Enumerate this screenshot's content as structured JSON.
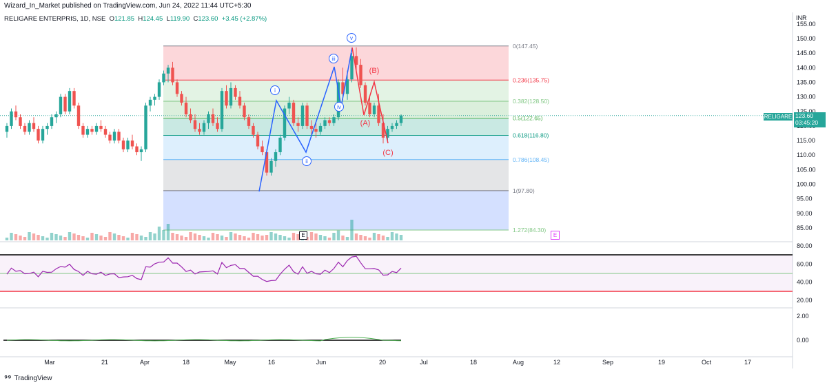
{
  "header": {
    "published": "Wizard_In_Market published on TradingView.com, Jun 24, 2022 11:44 UTC+5:30"
  },
  "symbol": {
    "name": "RELIGARE ENTERPRIS, 1D, NSE",
    "o_label": "O",
    "o": "121.85",
    "h_label": "H",
    "h": "124.45",
    "l_label": "L",
    "l": "119.90",
    "c_label": "C",
    "c": "123.60",
    "change": "+3.45 (+2.87%)"
  },
  "price_axis": {
    "currency": "INR",
    "ticks": [
      "155.00",
      "150.00",
      "145.00",
      "140.00",
      "135.00",
      "130.00",
      "125.00",
      "120.00",
      "115.00",
      "110.00",
      "105.00",
      "100.00",
      "95.00",
      "90.00",
      "85.00"
    ],
    "tag_name": "RELIGARE",
    "last_price": "123.60",
    "countdown": "03:45:20"
  },
  "rsi_axis": {
    "ticks": [
      "80.00",
      "60.00",
      "40.00",
      "20.00"
    ]
  },
  "osc_axis": {
    "ticks": [
      "2.00",
      "0.00"
    ]
  },
  "time_axis": [
    "Mar",
    "21",
    "Apr",
    "18",
    "May",
    "16",
    "Jun",
    "20",
    "Jul",
    "18",
    "Aug",
    "12",
    "Sep",
    "19",
    "Oct",
    "17"
  ],
  "fib_levels": [
    {
      "label": "0(147.45)",
      "price": 147.45,
      "color": "#787b86"
    },
    {
      "label": "0.236(135.75)",
      "price": 135.75,
      "color": "#f23645"
    },
    {
      "label": "0.382(128.50)",
      "price": 128.5,
      "color": "#81c784"
    },
    {
      "label": "0.5(122.65)",
      "price": 122.65,
      "color": "#4caf50"
    },
    {
      "label": "0.618(116.80)",
      "price": 116.8,
      "color": "#089981"
    },
    {
      "label": "0.786(108.45)",
      "price": 108.45,
      "color": "#64b5f6"
    },
    {
      "label": "1(97.80)",
      "price": 97.8,
      "color": "#787b86"
    },
    {
      "label": "1.272(84.30)",
      "price": 84.3,
      "color": "#81c784"
    }
  ],
  "waves": {
    "impulse": [
      "i",
      "ii",
      "iii",
      "iv",
      "v"
    ],
    "corrective": [
      "(A)",
      "(B)",
      "(C)"
    ]
  },
  "badges": {
    "earnings_marker": "E",
    "earnings_future": "E"
  },
  "footer": {
    "brand": "TradingView"
  },
  "colors": {
    "up": "#26a69a",
    "down": "#ef5350",
    "wave_blue": "#2962ff",
    "wave_red": "#f23645",
    "rsi": "#9c27b0"
  },
  "chart_data": {
    "type": "candlestick",
    "title": "RELIGARE ENTERPRIS, 1D, NSE",
    "ylim": [
      83,
      157
    ],
    "last_close": 123.6,
    "candles_ohlc": [
      [
        118,
        121,
        116,
        120
      ],
      [
        120,
        126,
        119,
        125
      ],
      [
        125,
        127,
        122,
        123
      ],
      [
        123,
        124,
        119,
        120
      ],
      [
        120,
        121,
        117,
        118
      ],
      [
        118,
        122,
        117,
        121
      ],
      [
        121,
        123,
        118,
        119
      ],
      [
        119,
        120,
        114,
        115
      ],
      [
        115,
        120,
        114,
        119
      ],
      [
        119,
        121,
        117,
        120
      ],
      [
        120,
        124,
        119,
        123
      ],
      [
        123,
        125,
        121,
        124
      ],
      [
        124,
        131,
        123,
        130
      ],
      [
        130,
        131,
        124,
        125
      ],
      [
        125,
        133,
        124,
        132
      ],
      [
        132,
        133,
        126,
        127
      ],
      [
        127,
        128,
        119,
        120
      ],
      [
        120,
        121,
        116,
        117
      ],
      [
        117,
        120,
        116,
        119
      ],
      [
        119,
        120,
        117,
        118
      ],
      [
        118,
        121,
        117,
        120
      ],
      [
        120,
        122,
        118,
        119
      ],
      [
        119,
        120,
        116,
        117
      ],
      [
        117,
        118,
        114,
        115
      ],
      [
        115,
        119,
        114,
        118
      ],
      [
        118,
        119,
        114,
        115
      ],
      [
        115,
        116,
        111,
        112
      ],
      [
        112,
        116,
        111,
        115
      ],
      [
        115,
        117,
        112,
        113
      ],
      [
        113,
        114,
        110,
        111
      ],
      [
        111,
        113,
        108,
        112
      ],
      [
        112,
        128,
        111,
        127
      ],
      [
        127,
        130,
        125,
        129
      ],
      [
        129,
        131,
        127,
        130
      ],
      [
        130,
        136,
        129,
        135
      ],
      [
        135,
        139,
        134,
        138
      ],
      [
        138,
        141,
        135,
        140
      ],
      [
        140,
        142,
        134,
        135
      ],
      [
        135,
        136,
        130,
        131
      ],
      [
        131,
        132,
        127,
        128
      ],
      [
        128,
        130,
        123,
        124
      ],
      [
        124,
        126,
        121,
        122
      ],
      [
        122,
        124,
        118,
        119
      ],
      [
        119,
        121,
        117,
        118
      ],
      [
        118,
        122,
        117,
        121
      ],
      [
        121,
        125,
        119,
        124
      ],
      [
        124,
        126,
        120,
        121
      ],
      [
        121,
        123,
        118,
        119
      ],
      [
        119,
        133,
        118,
        132
      ],
      [
        132,
        134,
        126,
        127
      ],
      [
        127,
        135,
        126,
        133
      ],
      [
        133,
        134,
        129,
        130
      ],
      [
        130,
        132,
        126,
        127
      ],
      [
        127,
        128,
        122,
        123
      ],
      [
        123,
        124,
        119,
        120
      ],
      [
        120,
        121,
        116,
        117
      ],
      [
        117,
        118,
        112,
        113
      ],
      [
        113,
        115,
        110,
        111
      ],
      [
        111,
        112,
        103,
        104
      ],
      [
        104,
        109,
        103,
        108
      ],
      [
        108,
        112,
        106,
        111
      ],
      [
        111,
        117,
        110,
        116
      ],
      [
        116,
        127,
        115,
        126
      ],
      [
        126,
        130,
        124,
        128
      ],
      [
        128,
        129,
        120,
        121
      ],
      [
        121,
        123,
        118,
        120
      ],
      [
        120,
        128,
        119,
        127
      ],
      [
        127,
        128,
        119,
        120
      ],
      [
        120,
        122,
        117,
        119
      ],
      [
        119,
        121,
        116,
        118
      ],
      [
        118,
        121,
        117,
        120
      ],
      [
        120,
        123,
        119,
        122
      ],
      [
        122,
        123,
        120,
        121
      ],
      [
        121,
        124,
        120,
        123
      ],
      [
        123,
        136,
        122,
        135
      ],
      [
        135,
        140,
        129,
        131
      ],
      [
        131,
        139,
        129,
        136
      ],
      [
        136,
        145,
        135,
        144
      ],
      [
        144,
        147,
        139,
        141
      ],
      [
        141,
        143,
        133,
        134
      ],
      [
        134,
        135,
        127,
        128
      ],
      [
        128,
        130,
        123,
        124
      ],
      [
        124,
        128,
        123,
        127
      ],
      [
        127,
        131,
        120,
        121
      ],
      [
        121,
        124,
        114,
        116
      ],
      [
        116,
        120,
        115,
        119
      ],
      [
        119,
        121,
        118,
        120
      ],
      [
        120,
        122,
        119,
        121
      ],
      [
        121,
        124,
        120,
        123.6
      ]
    ],
    "rsi_levels": {
      "upper": 70,
      "lower": 30,
      "mid": 50
    }
  }
}
